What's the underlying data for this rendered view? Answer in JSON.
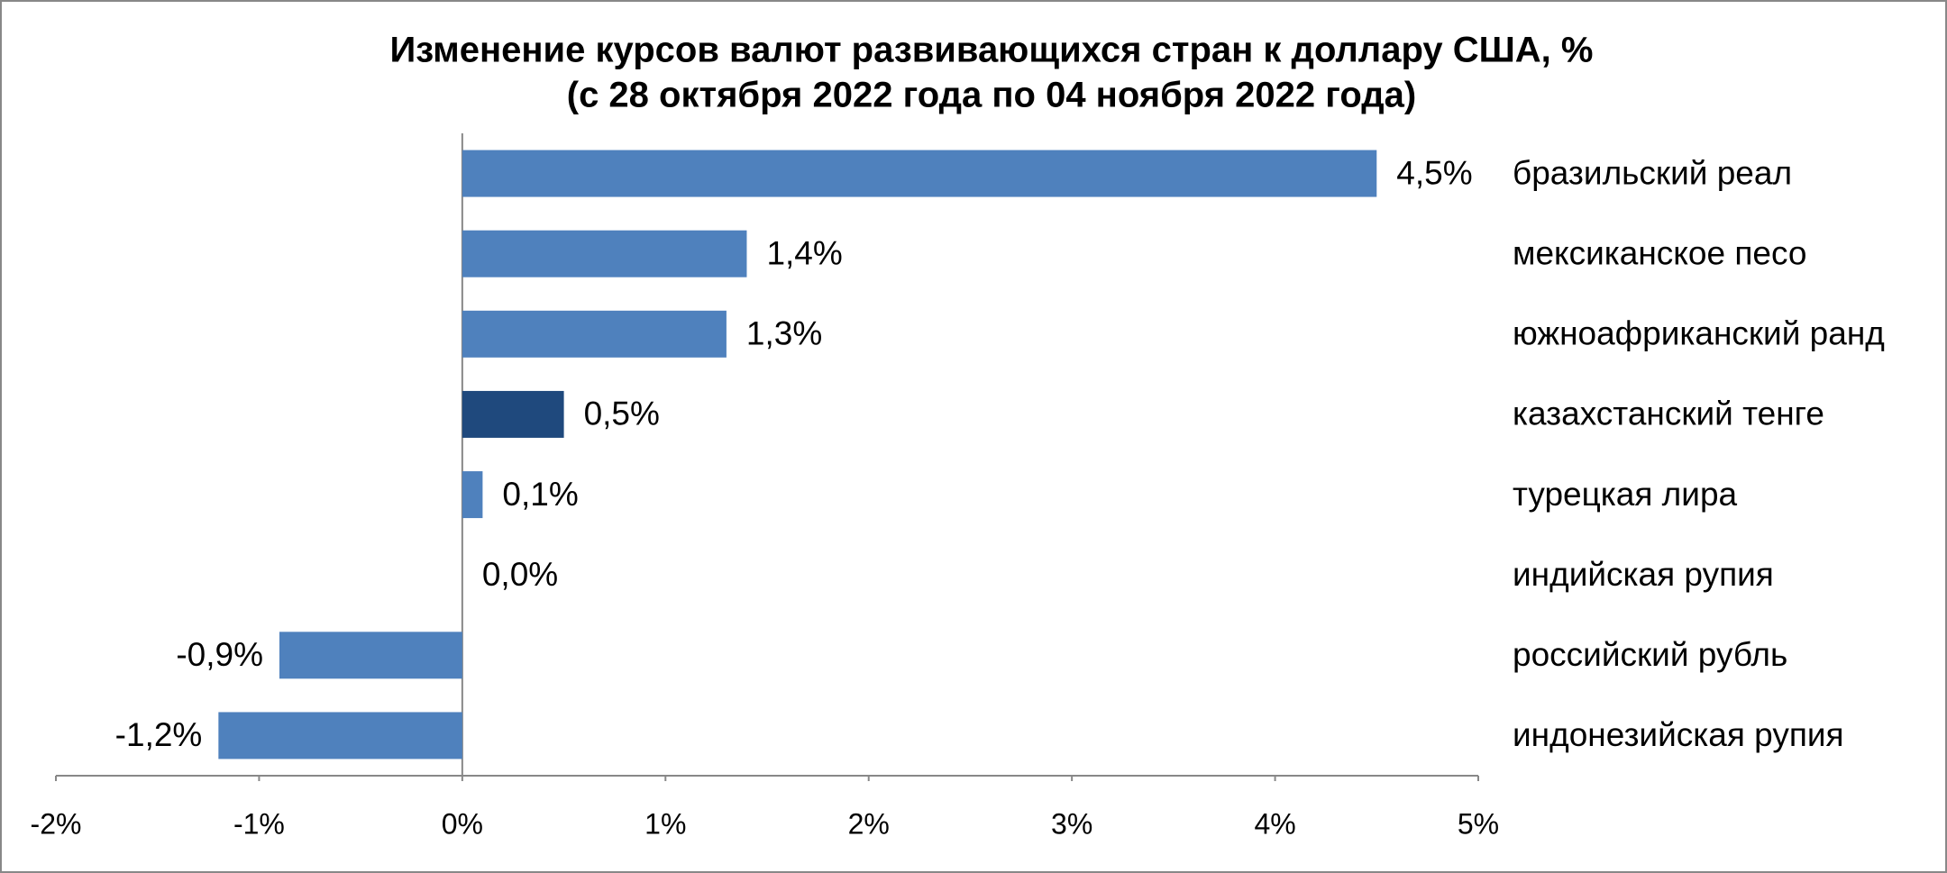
{
  "chart_data": {
    "type": "hbar",
    "title": "Изменение курсов валют развивающихся стран к доллару США, %",
    "subtitle": "(с 28 октября 2022 года по 04 ноября 2022 года)",
    "categories": [
      "бразильский реал",
      "мексиканское песо",
      "южноафриканский ранд",
      "казахстанский тенге",
      "турецкая лира",
      "индийская рупия",
      "российский рубль",
      "индонезийская рупия"
    ],
    "values": [
      4.5,
      1.4,
      1.3,
      0.5,
      0.1,
      0.0,
      -0.9,
      -1.2
    ],
    "value_labels": [
      "4,5%",
      "1,4%",
      "1,3%",
      "0,5%",
      "0,1%",
      "0,0%",
      "-0,9%",
      "-1,2%"
    ],
    "colors": [
      "#4f81bd",
      "#4f81bd",
      "#4f81bd",
      "#1f497d",
      "#4f81bd",
      "#4f81bd",
      "#4f81bd",
      "#4f81bd"
    ],
    "xlim": [
      -2,
      5
    ],
    "xticks": [
      {
        "value": -2,
        "label": "-2%"
      },
      {
        "value": -1,
        "label": "-1%"
      },
      {
        "value": 0,
        "label": "0%"
      },
      {
        "value": 1,
        "label": "1%"
      },
      {
        "value": 2,
        "label": "2%"
      },
      {
        "value": 3,
        "label": "3%"
      },
      {
        "value": 4,
        "label": "4%"
      },
      {
        "value": 5,
        "label": "5%"
      }
    ],
    "grid": false
  }
}
